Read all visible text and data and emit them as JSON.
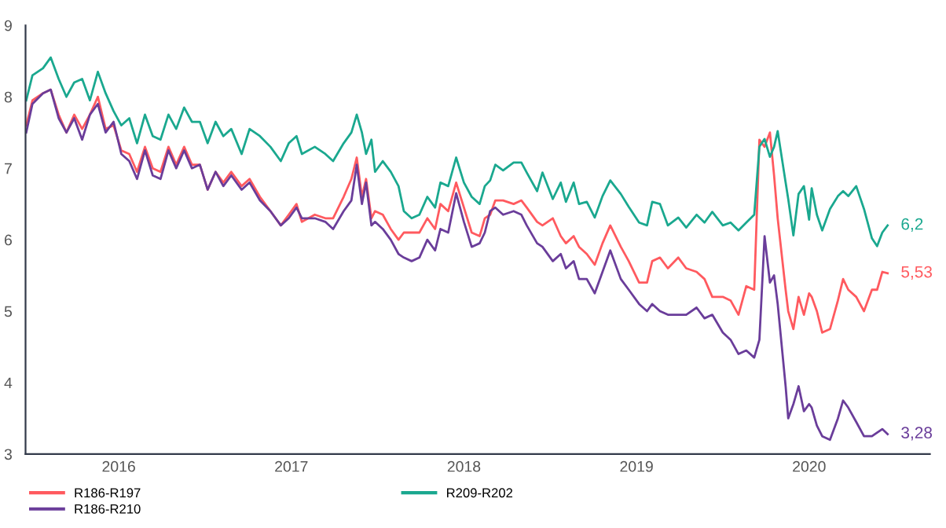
{
  "chart_data": {
    "type": "line",
    "x": [
      2015.964,
      2016.0,
      2016.061,
      2016.106,
      2016.152,
      2016.197,
      2016.242,
      2016.288,
      2016.333,
      2016.379,
      2016.424,
      2016.47,
      2016.515,
      2016.561,
      2016.606,
      2016.652,
      2016.697,
      2016.742,
      2016.788,
      2016.833,
      2016.879,
      2016.924,
      2016.97,
      2017.015,
      2017.061,
      2017.106,
      2017.152,
      2017.212,
      2017.258,
      2017.318,
      2017.379,
      2017.439,
      2017.485,
      2017.53,
      2017.561,
      2017.636,
      2017.697,
      2017.742,
      2017.803,
      2017.848,
      2017.879,
      2017.909,
      2017.933,
      2017.964,
      2017.985,
      2018.03,
      2018.076,
      2018.121,
      2018.152,
      2018.197,
      2018.242,
      2018.288,
      2018.333,
      2018.364,
      2018.409,
      2018.455,
      2018.5,
      2018.545,
      2018.591,
      2018.621,
      2018.652,
      2018.682,
      2018.727,
      2018.788,
      2018.833,
      2018.864,
      2018.924,
      2018.955,
      2019.015,
      2019.061,
      2019.091,
      2019.136,
      2019.167,
      2019.212,
      2019.258,
      2019.303,
      2019.348,
      2019.409,
      2019.455,
      2019.515,
      2019.561,
      2019.591,
      2019.636,
      2019.682,
      2019.742,
      2019.788,
      2019.848,
      2019.894,
      2019.939,
      2020.0,
      2020.045,
      2020.091,
      2020.136,
      2020.182,
      2020.212,
      2020.242,
      2020.273,
      2020.297,
      2020.318,
      2020.364,
      2020.379,
      2020.409,
      2020.439,
      2020.47,
      2020.5,
      2020.515,
      2020.545,
      2020.576,
      2020.621,
      2020.667,
      2020.697,
      2020.727,
      2020.773,
      2020.818,
      2020.864,
      2020.894,
      2020.924,
      2020.955
    ],
    "series": [
      {
        "name": "R186-R197",
        "color": "#ff5a5f",
        "values": [
          7.6,
          7.95,
          8.05,
          8.1,
          7.75,
          7.5,
          7.75,
          7.55,
          7.75,
          8.0,
          7.55,
          7.6,
          7.25,
          7.2,
          6.95,
          7.3,
          7.0,
          6.95,
          7.3,
          7.05,
          7.3,
          7.05,
          7.05,
          6.7,
          6.95,
          6.8,
          6.95,
          6.75,
          6.85,
          6.6,
          6.4,
          6.2,
          6.35,
          6.5,
          6.25,
          6.35,
          6.3,
          6.3,
          6.6,
          6.85,
          7.15,
          6.6,
          6.85,
          6.3,
          6.4,
          6.35,
          6.15,
          6.0,
          6.1,
          6.1,
          6.1,
          6.3,
          6.15,
          6.5,
          6.4,
          6.8,
          6.45,
          6.1,
          6.05,
          6.3,
          6.35,
          6.55,
          6.55,
          6.5,
          6.55,
          6.45,
          6.25,
          6.2,
          6.3,
          6.05,
          5.95,
          6.05,
          5.9,
          5.8,
          5.65,
          5.95,
          6.2,
          5.9,
          5.7,
          5.4,
          5.4,
          5.7,
          5.75,
          5.6,
          5.75,
          5.6,
          5.55,
          5.45,
          5.2,
          5.2,
          5.15,
          4.95,
          5.35,
          5.3,
          7.4,
          7.3,
          7.5,
          6.9,
          6.3,
          5.3,
          5.0,
          4.75,
          5.2,
          4.95,
          5.25,
          5.2,
          5.0,
          4.7,
          4.75,
          5.15,
          5.45,
          5.3,
          5.2,
          5.0,
          5.3,
          5.3,
          5.55,
          5.53
        ],
        "value_labels": [
          null,
          null,
          null,
          null,
          null,
          null,
          null,
          null,
          null,
          null,
          null,
          null,
          null,
          null,
          null,
          null,
          null,
          null,
          null,
          null,
          null,
          null,
          null,
          null,
          null,
          null,
          null,
          null,
          null,
          null,
          null,
          null,
          null,
          null,
          null,
          null,
          null,
          null,
          null,
          null,
          null,
          null,
          null,
          null,
          null,
          null,
          null,
          null,
          null,
          null,
          null,
          null,
          null,
          null,
          null,
          null,
          null,
          null,
          null,
          null,
          null,
          null,
          null,
          null,
          null,
          null,
          null,
          null,
          null,
          null,
          null,
          null,
          null,
          null,
          null,
          null,
          null,
          null,
          null,
          null,
          null,
          null,
          null,
          null,
          null,
          null,
          null,
          null,
          null,
          null,
          null,
          null,
          null,
          null,
          null,
          null,
          null,
          null,
          null,
          null,
          null,
          null,
          null,
          null,
          null,
          null,
          null,
          null,
          null,
          null,
          null,
          null,
          null,
          null,
          null,
          null,
          null,
          "5,53"
        ]
      },
      {
        "name": "R186-R210",
        "color": "#6a3d9a",
        "values": [
          7.5,
          7.9,
          8.05,
          8.1,
          7.7,
          7.5,
          7.7,
          7.4,
          7.75,
          7.9,
          7.5,
          7.65,
          7.2,
          7.1,
          6.85,
          7.25,
          6.9,
          6.85,
          7.25,
          7.0,
          7.25,
          7.0,
          7.05,
          6.7,
          6.95,
          6.75,
          6.9,
          6.7,
          6.8,
          6.55,
          6.4,
          6.2,
          6.3,
          6.45,
          6.3,
          6.3,
          6.25,
          6.15,
          6.4,
          6.55,
          7.05,
          6.5,
          6.8,
          6.2,
          6.25,
          6.15,
          6.0,
          5.8,
          5.75,
          5.7,
          5.75,
          6.0,
          5.85,
          6.15,
          6.1,
          6.65,
          6.25,
          5.9,
          5.95,
          6.1,
          6.4,
          6.45,
          6.35,
          6.4,
          6.35,
          6.2,
          5.95,
          5.9,
          5.7,
          5.8,
          5.6,
          5.7,
          5.45,
          5.45,
          5.25,
          5.55,
          5.85,
          5.45,
          5.3,
          5.1,
          5.0,
          5.1,
          5.0,
          4.95,
          4.95,
          4.95,
          5.05,
          4.9,
          4.95,
          4.7,
          4.6,
          4.4,
          4.45,
          4.35,
          4.6,
          6.05,
          5.4,
          5.5,
          5.1,
          3.95,
          3.5,
          3.7,
          3.95,
          3.6,
          3.7,
          3.65,
          3.4,
          3.25,
          3.2,
          3.5,
          3.75,
          3.65,
          3.45,
          3.25,
          3.25,
          3.3,
          3.35,
          3.28
        ],
        "value_labels": [
          null,
          null,
          null,
          null,
          null,
          null,
          null,
          null,
          null,
          null,
          null,
          null,
          null,
          null,
          null,
          null,
          null,
          null,
          null,
          null,
          null,
          null,
          null,
          null,
          null,
          null,
          null,
          null,
          null,
          null,
          null,
          null,
          null,
          null,
          null,
          null,
          null,
          null,
          null,
          null,
          null,
          null,
          null,
          null,
          null,
          null,
          null,
          null,
          null,
          null,
          null,
          null,
          null,
          null,
          null,
          null,
          null,
          null,
          null,
          null,
          null,
          null,
          null,
          null,
          null,
          null,
          null,
          null,
          null,
          null,
          null,
          null,
          null,
          null,
          null,
          null,
          null,
          null,
          null,
          null,
          null,
          null,
          null,
          null,
          null,
          null,
          null,
          null,
          null,
          null,
          null,
          null,
          null,
          null,
          null,
          null,
          null,
          null,
          null,
          null,
          null,
          null,
          null,
          null,
          null,
          null,
          null,
          null,
          null,
          null,
          null,
          null,
          null,
          null,
          null,
          null,
          null,
          "3,28"
        ]
      },
      {
        "name": "R209-R202",
        "color": "#1aa88f",
        "values": [
          7.95,
          8.3,
          8.4,
          8.55,
          8.25,
          8.0,
          8.2,
          8.25,
          7.95,
          8.35,
          8.05,
          7.8,
          7.6,
          7.7,
          7.35,
          7.75,
          7.45,
          7.4,
          7.75,
          7.55,
          7.85,
          7.65,
          7.65,
          7.35,
          7.65,
          7.45,
          7.55,
          7.2,
          7.55,
          7.45,
          7.3,
          7.1,
          7.35,
          7.45,
          7.2,
          7.3,
          7.2,
          7.1,
          7.35,
          7.5,
          7.75,
          7.5,
          7.2,
          7.4,
          6.95,
          7.1,
          6.95,
          6.75,
          6.4,
          6.3,
          6.35,
          6.6,
          6.45,
          6.8,
          6.75,
          7.15,
          6.8,
          6.6,
          6.5,
          6.75,
          6.83,
          7.05,
          6.97,
          7.08,
          7.08,
          6.94,
          6.68,
          6.94,
          6.57,
          6.8,
          6.53,
          6.8,
          6.5,
          6.53,
          6.31,
          6.61,
          6.83,
          6.64,
          6.46,
          6.24,
          6.2,
          6.53,
          6.5,
          6.2,
          6.31,
          6.17,
          6.35,
          6.24,
          6.39,
          6.2,
          6.24,
          6.13,
          6.24,
          6.35,
          7.3,
          7.41,
          7.16,
          7.3,
          7.52,
          6.8,
          6.57,
          6.06,
          6.64,
          6.75,
          6.28,
          6.72,
          6.35,
          6.13,
          6.43,
          6.61,
          6.68,
          6.61,
          6.75,
          6.43,
          6.02,
          5.91,
          6.1,
          6.2
        ],
        "value_labels": [
          null,
          null,
          null,
          null,
          null,
          null,
          null,
          null,
          null,
          null,
          null,
          null,
          null,
          null,
          null,
          null,
          null,
          null,
          null,
          null,
          null,
          null,
          null,
          null,
          null,
          null,
          null,
          null,
          null,
          null,
          null,
          null,
          null,
          null,
          null,
          null,
          null,
          null,
          null,
          null,
          null,
          null,
          null,
          null,
          null,
          null,
          null,
          null,
          null,
          null,
          null,
          null,
          null,
          null,
          null,
          null,
          null,
          null,
          null,
          null,
          null,
          null,
          null,
          null,
          null,
          null,
          null,
          null,
          null,
          null,
          null,
          null,
          null,
          null,
          null,
          null,
          null,
          null,
          null,
          null,
          null,
          null,
          null,
          null,
          null,
          null,
          null,
          null,
          null,
          null,
          null,
          null,
          null,
          null,
          null,
          null,
          null,
          null,
          null,
          null,
          null,
          null,
          null,
          null,
          null,
          null,
          null,
          null,
          null,
          null,
          null,
          null,
          null,
          null,
          null,
          null,
          null,
          "6,2"
        ]
      }
    ],
    "data_labels": false,
    "xlim": [
      2015.96,
      2021.2
    ],
    "xticks": [
      {
        "value": 2016.5,
        "label": "2016"
      },
      {
        "value": 2017.5,
        "label": "2017"
      },
      {
        "value": 2018.5,
        "label": "2018"
      },
      {
        "value": 2019.5,
        "label": "2019"
      },
      {
        "value": 2020.5,
        "label": "2020"
      }
    ],
    "ylim": [
      3,
      9
    ],
    "yticks": [
      3,
      4,
      5,
      6,
      7,
      8,
      9
    ],
    "grid": false,
    "legend": "bottom",
    "marker": "none",
    "line_style": "solid"
  }
}
